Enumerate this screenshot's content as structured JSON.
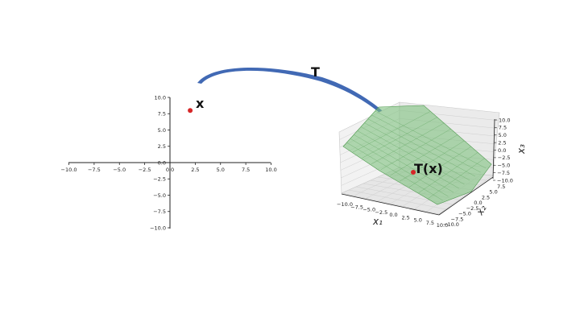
{
  "labels": {
    "x": "x",
    "T": "T",
    "Tx": "T(x)",
    "x1": "x₁",
    "x2": "x₂",
    "x3": "x₃"
  },
  "plane2d": {
    "x_ticks": [
      "−10.0",
      "−7.5",
      "−5.0",
      "−2.5",
      "0.0",
      "2.5",
      "5.0",
      "7.5",
      "10.0"
    ],
    "y_ticks": [
      "10.0",
      "7.5",
      "5.0",
      "2.5",
      "0.0",
      "−2.5",
      "−5.0",
      "−7.5",
      "−10.0"
    ],
    "point": {
      "x": 2,
      "y": 8
    }
  },
  "plot3d": {
    "x1_ticks": [
      "−10.0",
      "−7.5",
      "−5.0",
      "−2.5",
      "0.0",
      "2.5",
      "5.0",
      "7.5",
      "10.0"
    ],
    "x2_ticks": [
      "−10.0",
      "−7.5",
      "−5.0",
      "−2.5",
      "0.0",
      "2.5",
      "5.0",
      "7.5"
    ],
    "x3_ticks": [
      "10.0",
      "7.5",
      "5.0",
      "2.5",
      "0.0",
      "−2.5",
      "−5.0",
      "−7.5",
      "−10.0"
    ]
  },
  "colors": {
    "point": "#d62728",
    "arrow": "#4169b4",
    "plane_fill": "#7fc27f",
    "plane_edge": "#4f9a4f",
    "axis": "#222222",
    "grid": "#cfcfcf"
  }
}
